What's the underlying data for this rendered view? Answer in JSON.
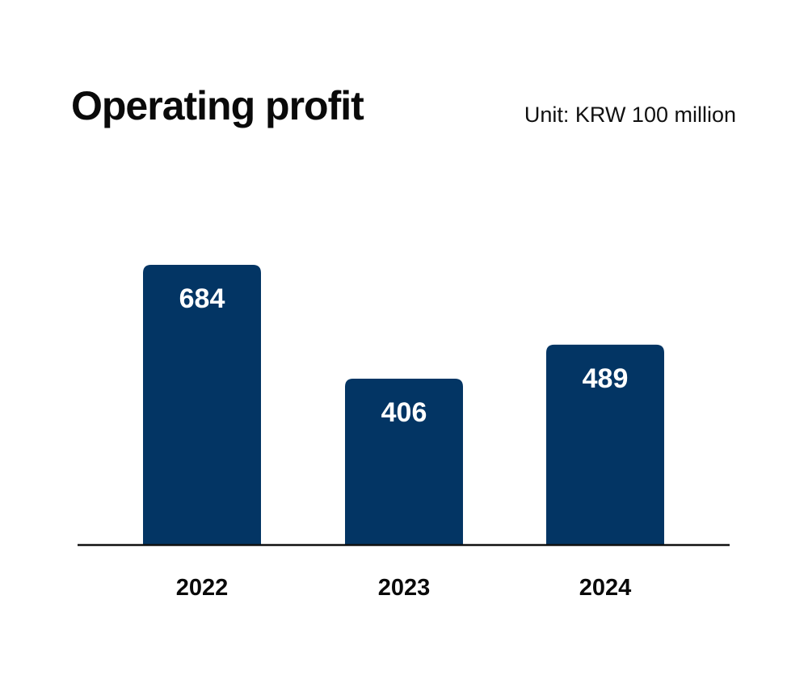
{
  "chart_data": {
    "type": "bar",
    "title": "Operating profit",
    "unit_label": "Unit: KRW 100 million",
    "categories": [
      "2022",
      "2023",
      "2024"
    ],
    "values": [
      684,
      406,
      489
    ],
    "data_labels": [
      "684",
      "406",
      "489"
    ],
    "xlabel": "",
    "ylabel": "",
    "ylim": [
      0,
      684
    ],
    "grid": false,
    "legend": "none"
  },
  "colors": {
    "bar": "#033564",
    "bar_label": "#ffffff",
    "axis": "#111111",
    "text": "#0a0a0a"
  }
}
